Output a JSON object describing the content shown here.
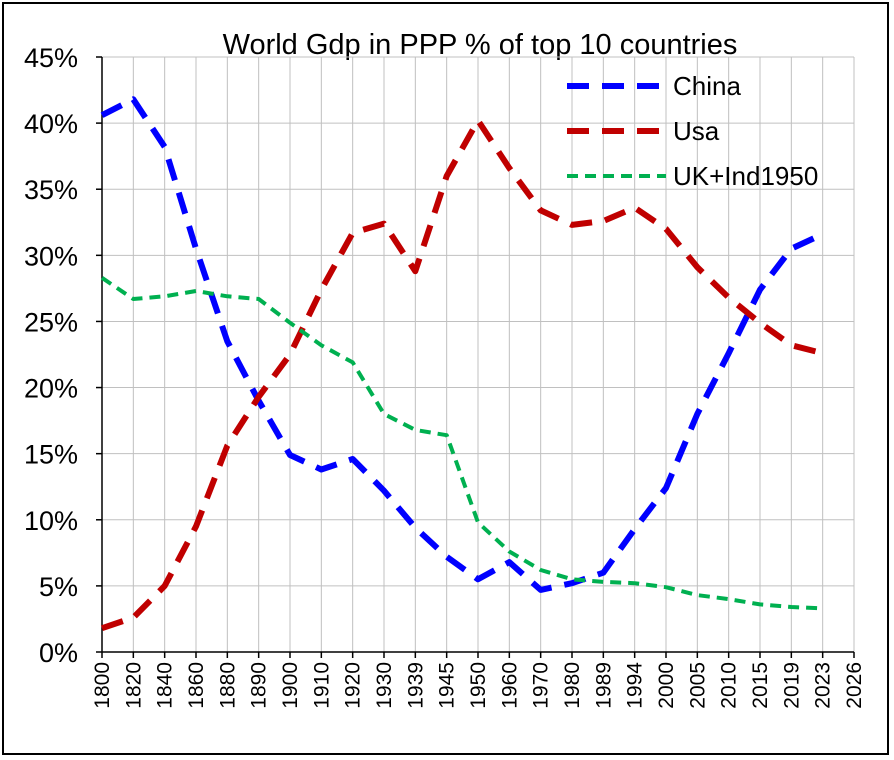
{
  "chart_data": {
    "type": "line",
    "title": "World Gdp in PPP % of top 10 countries",
    "xlabel": "",
    "ylabel": "",
    "ylim": [
      0,
      45
    ],
    "y_ticks": [
      "0%",
      "5%",
      "10%",
      "15%",
      "20%",
      "25%",
      "30%",
      "35%",
      "40%",
      "45%"
    ],
    "categories": [
      "1800",
      "1820",
      "1840",
      "1860",
      "1880",
      "1890",
      "1900",
      "1910",
      "1920",
      "1930",
      "1939",
      "1945",
      "1950",
      "1960",
      "1970",
      "1980",
      "1989",
      "1994",
      "2000",
      "2005",
      "2010",
      "2015",
      "2019",
      "2023",
      "2026"
    ],
    "grid": true,
    "legend": "top-right",
    "series": [
      {
        "name": "China",
        "color": "#0000ff",
        "style": "long-dash",
        "values": [
          40.6,
          41.8,
          38.2,
          30.5,
          23.5,
          19.0,
          14.9,
          13.8,
          14.6,
          12.2,
          9.4,
          7.2,
          5.5,
          6.8,
          4.7,
          5.2,
          6.0,
          9.3,
          12.4,
          18.0,
          22.6,
          27.4,
          30.5,
          31.6,
          null
        ]
      },
      {
        "name": "Usa",
        "color": "#c00000",
        "style": "long-dash",
        "values": [
          1.8,
          2.6,
          5.0,
          9.5,
          15.6,
          19.3,
          22.5,
          27.4,
          31.7,
          32.4,
          28.8,
          36.0,
          40.2,
          36.6,
          33.4,
          32.3,
          32.6,
          33.6,
          32.0,
          29.1,
          26.8,
          24.9,
          23.2,
          22.6,
          null
        ]
      },
      {
        "name": "UK+Ind1950",
        "color": "#00b050",
        "style": "short-dash",
        "values": [
          28.3,
          26.7,
          26.9,
          27.3,
          26.9,
          26.7,
          24.9,
          23.2,
          21.9,
          18.0,
          16.8,
          16.4,
          9.8,
          7.6,
          6.2,
          5.5,
          5.3,
          5.2,
          4.9,
          4.3,
          4.0,
          3.6,
          3.4,
          3.3,
          null
        ]
      }
    ]
  }
}
